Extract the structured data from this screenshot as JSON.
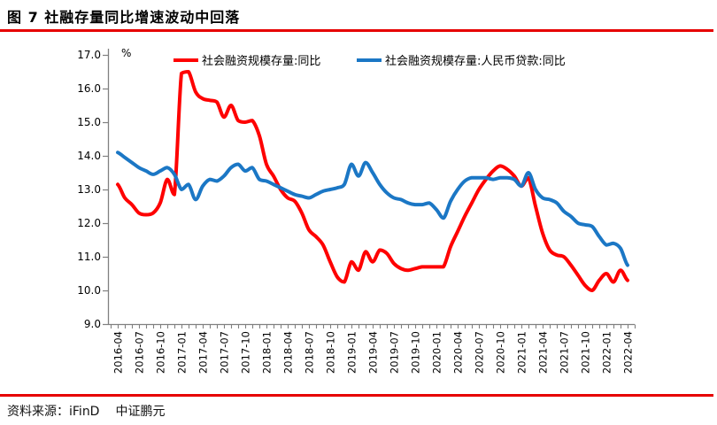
{
  "header": {
    "title": "图 7  社融存量同比增速波动中回落"
  },
  "footer": {
    "source": "资料来源：iFinD",
    "org": "中证鹏元"
  },
  "accent_color": "#e60000",
  "chart_data": {
    "type": "line",
    "unit_label": "%",
    "ylim": [
      9,
      17
    ],
    "ytick_labels": [
      "17.0",
      "16.0",
      "15.0",
      "14.0",
      "13.0",
      "12.0",
      "11.0",
      "10.0",
      "9.0"
    ],
    "x_label_step": 3,
    "x_labels": [
      "2016-04",
      "2016-07",
      "2016-10",
      "2017-01",
      "2017-04",
      "2017-07",
      "2017-10",
      "2018-01",
      "2018-04",
      "2018-07",
      "2018-10",
      "2019-01",
      "2019-04",
      "2019-07",
      "2019-10",
      "2020-01",
      "2020-04",
      "2020-07",
      "2020-10",
      "2021-01",
      "2021-04",
      "2021-07",
      "2021-10",
      "2022-01",
      "2022-04"
    ],
    "legend_position": "top",
    "grid": false,
    "axis_color": "#808080",
    "series": [
      {
        "name": "社会融资规模存量:同比",
        "color": "#fe0000",
        "values": [
          13.15,
          12.75,
          12.55,
          12.3,
          12.25,
          12.3,
          12.6,
          13.3,
          12.85,
          16.45,
          16.5,
          15.9,
          15.7,
          15.65,
          15.6,
          15.15,
          15.5,
          15.05,
          15.0,
          15.05,
          14.6,
          13.75,
          13.4,
          13.0,
          12.75,
          12.65,
          12.3,
          11.8,
          11.6,
          11.35,
          10.85,
          10.4,
          10.25,
          10.85,
          10.6,
          11.15,
          10.85,
          11.2,
          11.1,
          10.8,
          10.65,
          10.6,
          10.65,
          10.7,
          10.7,
          10.7,
          10.7,
          11.3,
          11.75,
          12.2,
          12.6,
          13.0,
          13.3,
          13.55,
          13.7,
          13.6,
          13.4,
          13.1,
          13.35,
          12.5,
          11.7,
          11.2,
          11.05,
          11.0,
          10.75,
          10.45,
          10.15,
          10.0,
          10.3,
          10.5,
          10.25,
          10.6,
          10.3
        ]
      },
      {
        "name": "社会融资规模存量:人民币贷款:同比",
        "color": "#1b77c5",
        "values": [
          14.1,
          13.95,
          13.8,
          13.65,
          13.55,
          13.45,
          13.55,
          13.65,
          13.45,
          13.0,
          13.15,
          12.7,
          13.1,
          13.3,
          13.25,
          13.4,
          13.65,
          13.75,
          13.55,
          13.65,
          13.3,
          13.25,
          13.15,
          13.05,
          12.95,
          12.85,
          12.8,
          12.75,
          12.85,
          12.95,
          13.0,
          13.05,
          13.15,
          13.75,
          13.4,
          13.8,
          13.5,
          13.15,
          12.9,
          12.75,
          12.7,
          12.6,
          12.55,
          12.55,
          12.6,
          12.4,
          12.15,
          12.65,
          13.0,
          13.25,
          13.35,
          13.35,
          13.35,
          13.3,
          13.35,
          13.35,
          13.3,
          13.1,
          13.5,
          13.0,
          12.75,
          12.7,
          12.6,
          12.35,
          12.2,
          12.0,
          11.95,
          11.9,
          11.6,
          11.35,
          11.4,
          11.25,
          10.75
        ]
      }
    ]
  }
}
